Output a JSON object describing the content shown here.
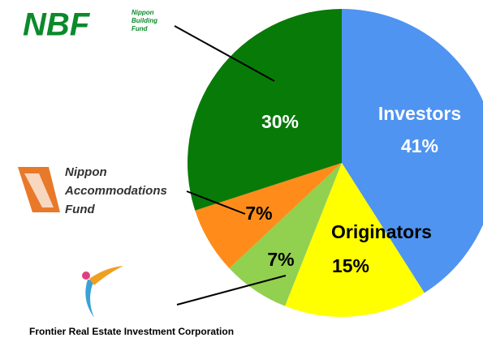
{
  "chart_data": {
    "type": "pie",
    "categories": [
      "Investors",
      "Originators",
      null,
      null,
      null
    ],
    "values": [
      41,
      15,
      7,
      7,
      30
    ],
    "value_labels": [
      "41%",
      "15%",
      "7%",
      "7%",
      "30%"
    ],
    "colors": [
      "#4f94f0",
      "#ffff00",
      "#92d050",
      "#ff8c1a",
      "#087a08"
    ],
    "logos": [
      {
        "name": "NBF",
        "lines": [
          "Nippon",
          "Building",
          "Fund"
        ]
      },
      {
        "lines": [
          "Nippon",
          "Accommodations",
          "Fund"
        ]
      },
      {
        "caption": "Frontier Real Estate Investment Corporation"
      }
    ]
  }
}
